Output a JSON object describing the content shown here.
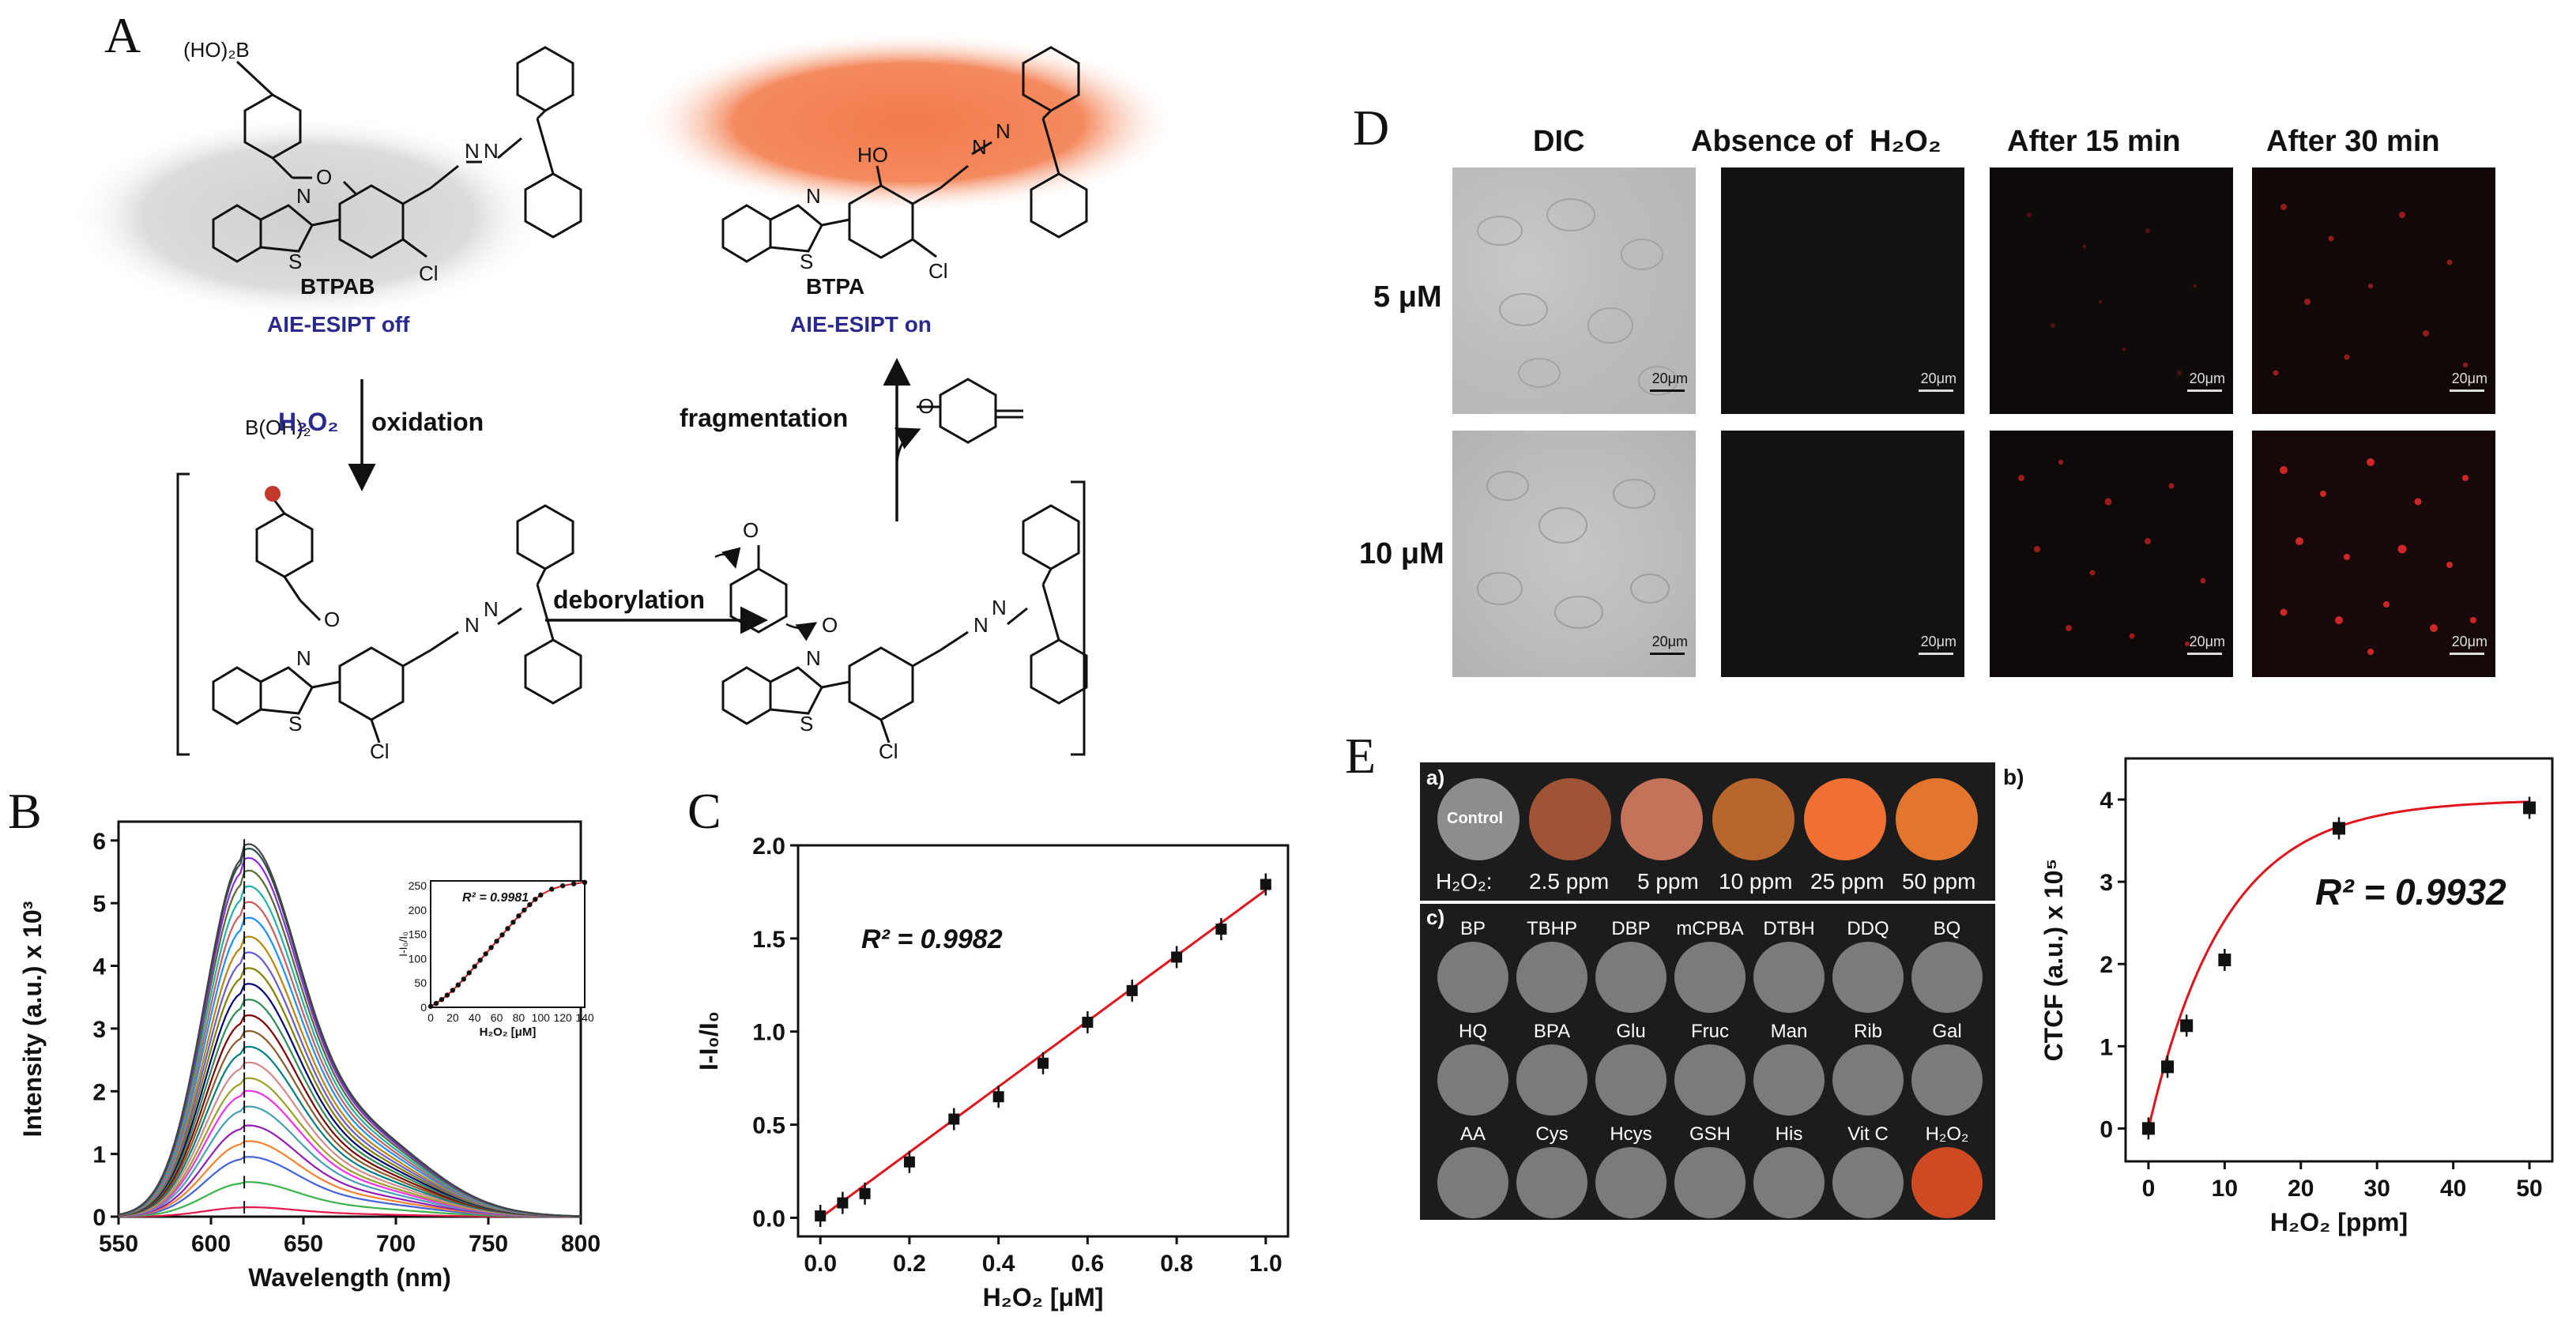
{
  "panels": {
    "a": {
      "letter": "A",
      "btpab_name": "BTPAB",
      "btpab_state": "AIE-ESIPT off",
      "btpa_name": "BTPA",
      "btpa_state": "AIE-ESIPT on",
      "boronic_acid": "(HO)₂B",
      "boronic_acid2": "B(OH)₂",
      "h2o2": "H₂O₂",
      "oxidation": "oxidation",
      "deborylation": "deborylation",
      "fragmentation": "fragmentation",
      "atoms": {
        "N": "N",
        "S": "S",
        "O": "O",
        "Cl": "Cl",
        "HO": "HO"
      }
    },
    "b": {
      "letter": "B",
      "ylabel": "Intensity (a.u.) x 10³",
      "xlabel": "Wavelength (nm)",
      "inset_r2": "R² = 0.9981",
      "inset_ylabel": "I-I₀/I₀",
      "inset_xlabel": "H₂O₂ [μM]"
    },
    "c": {
      "letter": "C",
      "ylabel": "I-I₀/I₀",
      "xlabel": "H₂O₂ [μM]",
      "r2": "R² = 0.9982"
    },
    "d": {
      "letter": "D",
      "columns": [
        "DIC",
        "Absence of  H₂O₂",
        "After 15 min",
        "After 30 min"
      ],
      "rows": [
        "5 μM",
        "10 μM"
      ],
      "scale_bar": "20μm"
    },
    "e": {
      "letter": "E",
      "sub_a": "a)",
      "sub_b": "b)",
      "sub_c": "c)",
      "control": "Control",
      "h2o2_prefix": "H₂O₂:",
      "concentrations": [
        "2.5 ppm",
        "5 ppm",
        "10 ppm",
        "25 ppm",
        "50 ppm"
      ],
      "analytes_row1": [
        "BP",
        "TBHP",
        "DBP",
        "mCPBA",
        "DTBH",
        "DDQ",
        "BQ"
      ],
      "analytes_row2": [
        "HQ",
        "BPA",
        "Glu",
        "Fruc",
        "Man",
        "Rib",
        "Gal"
      ],
      "analytes_row3": [
        "AA",
        "Cys",
        "Hcys",
        "GSH",
        "His",
        "Vit C",
        "H₂O₂"
      ],
      "ylabel": "CTCF (a.u.) x 10⁵",
      "xlabel": "H₂O₂ [ppm]",
      "r2": "R² = 0.9932"
    }
  },
  "colors": {
    "fit_red": "#e0141c",
    "aie_blue": "#2a2a8c",
    "glow_orange": "#f27a4c",
    "glow_gray": "#c4c4c4",
    "spot_gray": "#7b7b7b",
    "well_control": "#8d8d8d",
    "well_25": "#f07033",
    "well_h2o2": "#cf4a22"
  },
  "chart_data": [
    {
      "id": "B",
      "type": "line",
      "xlabel": "Wavelength (nm)",
      "ylabel": "Intensity (a.u.) x 10³",
      "xlim": [
        550,
        800
      ],
      "ylim": [
        0,
        6.3
      ],
      "xticks": [
        550,
        600,
        650,
        700,
        750,
        800
      ],
      "yticks": [
        0,
        1,
        2,
        3,
        4,
        5,
        6
      ],
      "peak_wavelength": 618,
      "peak_intensities": [
        0.15,
        0.55,
        0.95,
        1.2,
        1.45,
        1.75,
        2.0,
        2.2,
        2.45,
        2.7,
        2.95,
        3.2,
        3.45,
        3.7,
        3.95,
        4.2,
        4.45,
        4.75,
        5.0,
        5.25,
        5.5,
        5.7,
        5.85,
        5.92
      ],
      "legend": "none",
      "inset": {
        "type": "scatter",
        "xlabel": "H₂O₂ [μM]",
        "ylabel": "I-I₀/I₀",
        "xlim": [
          0,
          140
        ],
        "ylim": [
          0,
          260
        ],
        "xticks": [
          0,
          20,
          40,
          60,
          80,
          100,
          120,
          140
        ],
        "yticks": [
          0,
          50,
          100,
          150,
          200,
          250
        ],
        "x": [
          0,
          5,
          10,
          15,
          20,
          25,
          30,
          35,
          40,
          45,
          50,
          55,
          60,
          65,
          70,
          75,
          80,
          85,
          90,
          95,
          100,
          110,
          120,
          130,
          140
        ],
        "y": [
          2,
          8,
          16,
          25,
          35,
          46,
          58,
          71,
          84,
          97,
          110,
          123,
          136,
          149,
          162,
          175,
          188,
          200,
          211,
          222,
          231,
          243,
          250,
          254,
          257
        ],
        "r2": "R² = 0.9981"
      }
    },
    {
      "id": "C",
      "type": "scatter",
      "xlabel": "H₂O₂ [μM]",
      "ylabel": "I-I₀/I₀",
      "xlim": [
        -0.05,
        1.05
      ],
      "ylim": [
        -0.1,
        2.0
      ],
      "xticks": [
        0.0,
        0.2,
        0.4,
        0.6,
        0.8,
        1.0
      ],
      "yticks": [
        0.0,
        0.5,
        1.0,
        1.5,
        2.0
      ],
      "x": [
        0.0,
        0.05,
        0.1,
        0.2,
        0.3,
        0.4,
        0.5,
        0.6,
        0.7,
        0.8,
        0.9,
        1.0
      ],
      "y": [
        0.01,
        0.08,
        0.13,
        0.3,
        0.53,
        0.65,
        0.83,
        1.05,
        1.22,
        1.4,
        1.55,
        1.79
      ],
      "fit": {
        "type": "linear",
        "slope": 1.76,
        "intercept": 0.0
      },
      "r2": "R² = 0.9982",
      "grid": false
    },
    {
      "id": "E-b",
      "type": "scatter",
      "xlabel": "H₂O₂ [ppm]",
      "ylabel": "CTCF (a.u.) x 10⁵",
      "xlim": [
        -3,
        53
      ],
      "ylim": [
        -0.4,
        4.5
      ],
      "xticks": [
        0,
        10,
        20,
        30,
        40,
        50
      ],
      "yticks": [
        0,
        1,
        2,
        3,
        4
      ],
      "x": [
        0,
        2.5,
        5,
        10,
        25,
        50
      ],
      "y": [
        0.0,
        0.75,
        1.25,
        2.05,
        3.65,
        3.9
      ],
      "fit": {
        "type": "exponential",
        "a": 4.0,
        "k": 0.1
      },
      "r2": "R² = 0.9932",
      "grid": false
    }
  ]
}
